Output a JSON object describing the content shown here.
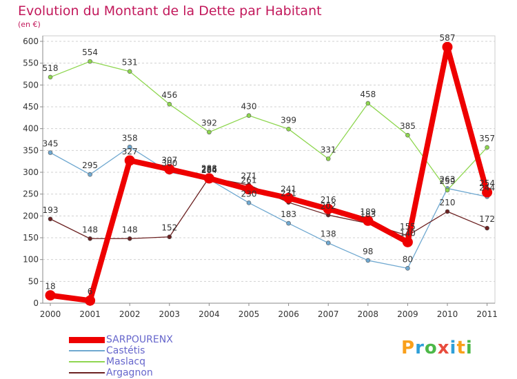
{
  "title": "Evolution du Montant de la Dette par Habitant",
  "subtitle": "(en €)",
  "logo": {
    "text": "Proxiti",
    "colors": [
      "#f9a01b",
      "#2e9fd8",
      "#4cb848",
      "#e84c3d",
      "#2e9fd8",
      "#f9a01b",
      "#4cb848"
    ]
  },
  "chart_data": {
    "type": "line",
    "categories": [
      "2000",
      "2001",
      "2002",
      "2003",
      "2004",
      "2005",
      "2006",
      "2007",
      "2008",
      "2009",
      "2010",
      "2011"
    ],
    "ylim": [
      0,
      600
    ],
    "yticks": [
      "0",
      "50",
      "100",
      "150",
      "200",
      "250",
      "300",
      "350",
      "400",
      "450",
      "500",
      "550",
      "600"
    ],
    "grid": "dashed horizontal",
    "legend_position": "bottom-left",
    "series": [
      {
        "name": "Castétis",
        "color": "#6fa8d0",
        "values": [
          345,
          295,
          358,
          300,
          284,
          230,
          183,
          138,
          98,
          80,
          263,
          244
        ]
      },
      {
        "name": "Maslacq",
        "color": "#8ed64f",
        "values": [
          518,
          554,
          531,
          456,
          392,
          430,
          399,
          331,
          458,
          385,
          259,
          357
        ]
      },
      {
        "name": "Argagnon",
        "color": "#6b2121",
        "values": [
          193,
          148,
          148,
          152,
          288,
          271,
          231,
          202,
          183,
          155,
          210,
          172
        ]
      },
      {
        "name": "SARPOURENX",
        "color": "#ee0000",
        "values": [
          18,
          6,
          327,
          307,
          286,
          261,
          241,
          216,
          189,
          140,
          587,
          254
        ]
      }
    ],
    "labels": [
      {
        "series": 0,
        "values": [
          "345",
          "295",
          "358",
          "300",
          "284",
          "230",
          "183",
          "138",
          "98",
          "80",
          "263",
          "244"
        ]
      },
      {
        "series": 1,
        "values": [
          "518",
          "554",
          "531",
          "456",
          "392",
          "430",
          "399",
          "331",
          "458",
          "385",
          "259",
          "357"
        ]
      },
      {
        "series": 2,
        "values": [
          "193",
          "148",
          "148",
          "152",
          "288",
          "271",
          "231",
          "202",
          "183",
          "155",
          "210",
          "172"
        ]
      },
      {
        "series": 3,
        "values": [
          "18",
          "6",
          "327",
          "307",
          "286",
          "261",
          "241",
          "216",
          "189",
          "140",
          "587",
          "254"
        ]
      }
    ]
  },
  "legend": [
    {
      "label": "SARPOURENX",
      "color": "#ee0000",
      "thick": true
    },
    {
      "label": "Castétis",
      "color": "#6fa8d0",
      "thick": false
    },
    {
      "label": "Maslacq",
      "color": "#8ed64f",
      "thick": false
    },
    {
      "label": "Argagnon",
      "color": "#6b2121",
      "thick": false
    }
  ]
}
